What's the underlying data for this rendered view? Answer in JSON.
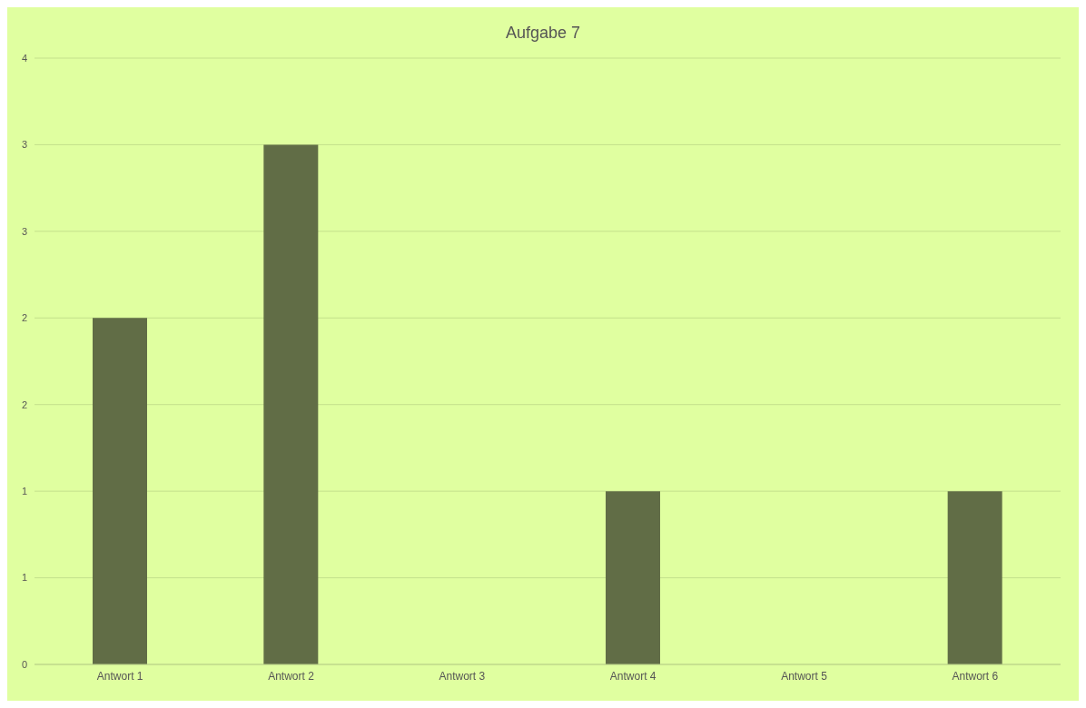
{
  "chart_data": {
    "type": "bar",
    "title": "Aufgabe 7",
    "categories": [
      "Antwort 1",
      "Antwort 2",
      "Antwort 3",
      "Antwort 4",
      "Antwort 5",
      "Antwort 6"
    ],
    "values": [
      2,
      3,
      0,
      1,
      0,
      1
    ],
    "color": "#616d46",
    "ylim": [
      0,
      3.5
    ],
    "yticks": [
      0,
      {
        "value": 0.5,
        "label": "1"
      },
      1,
      {
        "value": 1.5,
        "label": "2"
      },
      2,
      {
        "value": 2.5,
        "label": "3"
      },
      3,
      {
        "value": 3.5,
        "label": "4"
      }
    ],
    "grid": "y",
    "legend": false
  }
}
